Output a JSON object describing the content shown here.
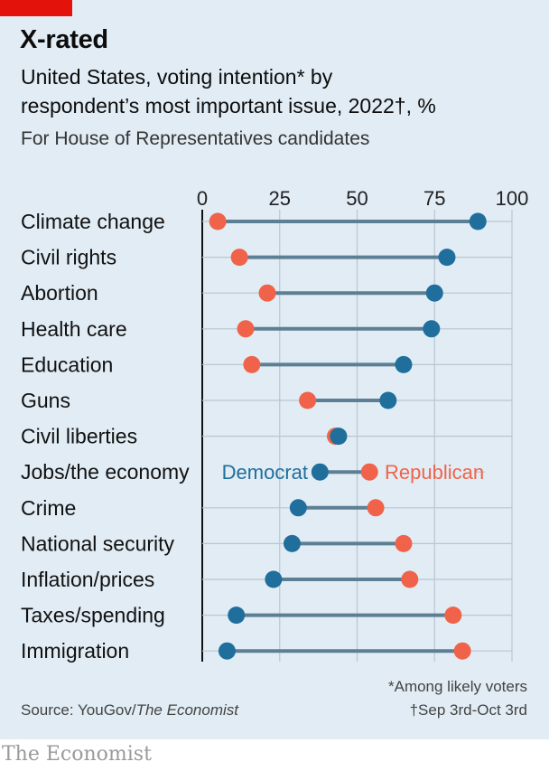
{
  "header": {
    "title": "X-rated",
    "subtitle_line1": "United States, voting intention* by",
    "subtitle_line2": "respondent’s most important issue, 2022†, %",
    "subtitle_line3": "For House of Representatives candidates"
  },
  "footer": {
    "footnote1": "*Among likely voters",
    "footnote2": "†Sep 3rd-Oct 3rd",
    "source_prefix": "Source: YouGov/",
    "source_italic": "The Economist",
    "brand": "The Economist"
  },
  "colors": {
    "democrat": "#1f6e9c",
    "republican": "#f0634a",
    "connector": "#5d7f94",
    "grid": "#b9c7d2",
    "background": "#e1ecf4",
    "accent_tag": "#e3120b"
  },
  "chart_data": {
    "type": "dumbbell",
    "xlim": [
      0,
      100
    ],
    "x_ticks": [
      0,
      25,
      50,
      75,
      100
    ],
    "grid": true,
    "categories": [
      "Climate change",
      "Civil rights",
      "Abortion",
      "Health care",
      "Education",
      "Guns",
      "Civil liberties",
      "Jobs/the economy",
      "Crime",
      "National security",
      "Inflation/prices",
      "Taxes/spending",
      "Immigration"
    ],
    "series": [
      {
        "name": "Democrat",
        "values": [
          89,
          79,
          75,
          74,
          65,
          60,
          44,
          38,
          31,
          29,
          23,
          11,
          8
        ]
      },
      {
        "name": "Republican",
        "values": [
          5,
          12,
          21,
          14,
          16,
          34,
          43,
          54,
          56,
          65,
          67,
          81,
          84
        ]
      }
    ],
    "legend": {
      "democrat_label": "Democrat",
      "republican_label": "Republican",
      "placement": "inline on Jobs/the economy row"
    }
  }
}
